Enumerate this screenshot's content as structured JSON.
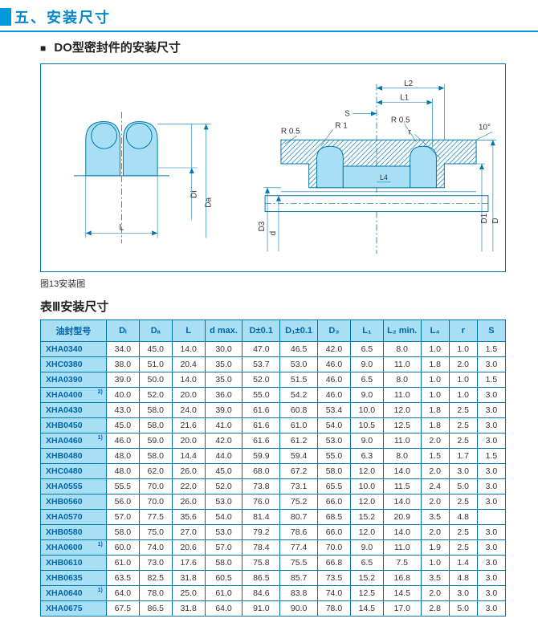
{
  "section_title": "五、安装尺寸",
  "subsection_title": "DO型密封件的安装尺寸",
  "figure_caption": "图13安装图",
  "table_title": "表Ⅲ安装尺寸",
  "columns": [
    "油封型号",
    "Dᵢ",
    "Dₐ",
    "L",
    "d max.",
    "D±0.1",
    "D₁±0.1",
    "D₃",
    "L₁",
    "L₂ min.",
    "L₄",
    "r",
    "S"
  ],
  "rows": [
    {
      "model": "XHA0340",
      "sup": "",
      "d": [
        "34.0",
        "45.0",
        "14.0",
        "30.0",
        "47.0",
        "46.5",
        "42.0",
        "6.5",
        "8.0",
        "1.0",
        "1.0",
        "1.5"
      ]
    },
    {
      "model": "XHC0380",
      "sup": "",
      "d": [
        "38.0",
        "51.0",
        "20.4",
        "35.0",
        "53.7",
        "53.0",
        "46.0",
        "9.0",
        "11.0",
        "1.8",
        "2.0",
        "3.0"
      ]
    },
    {
      "model": "XHA0390",
      "sup": "",
      "d": [
        "39.0",
        "50.0",
        "14.0",
        "35.0",
        "52.0",
        "51.5",
        "46.0",
        "6.5",
        "8.0",
        "1.0",
        "1.0",
        "1.5"
      ]
    },
    {
      "model": "XHA0400",
      "sup": "2)",
      "d": [
        "40.0",
        "52.0",
        "20.0",
        "36.0",
        "55.0",
        "54.2",
        "46.0",
        "9.0",
        "11.0",
        "1.0",
        "1.0",
        "3.0"
      ]
    },
    {
      "model": "XHA0430",
      "sup": "",
      "d": [
        "43.0",
        "58.0",
        "24.0",
        "39.0",
        "61.6",
        "60.8",
        "53.4",
        "10.0",
        "12.0",
        "1.8",
        "2.5",
        "3.0"
      ]
    },
    {
      "model": "XHB0450",
      "sup": "",
      "d": [
        "45.0",
        "58.0",
        "21.6",
        "41.0",
        "61.6",
        "61.0",
        "54.0",
        "10.5",
        "12.5",
        "1.8",
        "2.5",
        "3.0"
      ]
    },
    {
      "model": "XHA0460",
      "sup": "1)",
      "d": [
        "46.0",
        "59.0",
        "20.0",
        "42.0",
        "61.6",
        "61.2",
        "53.0",
        "9.0",
        "11.0",
        "2.0",
        "2.5",
        "3.0"
      ]
    },
    {
      "model": "XHB0480",
      "sup": "",
      "d": [
        "48.0",
        "58.0",
        "14.4",
        "44.0",
        "59.9",
        "59.4",
        "55.0",
        "6.3",
        "8.0",
        "1.5",
        "1.7",
        "1.5"
      ]
    },
    {
      "model": "XHC0480",
      "sup": "",
      "d": [
        "48.0",
        "62.0",
        "26.0",
        "45.0",
        "68.0",
        "67.2",
        "58.0",
        "12.0",
        "14.0",
        "2.0",
        "3.0",
        "3.0"
      ]
    },
    {
      "model": "XHA0555",
      "sup": "",
      "d": [
        "55.5",
        "70.0",
        "22.0",
        "52.0",
        "73.8",
        "73.1",
        "65.5",
        "10.0",
        "11.5",
        "2.4",
        "5.0",
        "3.0"
      ]
    },
    {
      "model": "XHB0560",
      "sup": "",
      "d": [
        "56.0",
        "70.0",
        "26.0",
        "53.0",
        "76.0",
        "75.2",
        "66.0",
        "12.0",
        "14.0",
        "2.0",
        "2.5",
        "3.0"
      ]
    },
    {
      "model": "XHA0570",
      "sup": "",
      "d": [
        "57.0",
        "77.5",
        "35.6",
        "54.0",
        "81.4",
        "80.7",
        "68.5",
        "15.2",
        "20.9",
        "3.5",
        "4.8",
        ""
      ]
    },
    {
      "model": "XHB0580",
      "sup": "",
      "d": [
        "58.0",
        "75.0",
        "27.0",
        "53.0",
        "79.2",
        "78.6",
        "66.0",
        "12.0",
        "14.0",
        "2.0",
        "2.5",
        "3.0"
      ]
    },
    {
      "model": "XHA0600",
      "sup": "1)",
      "d": [
        "60.0",
        "74.0",
        "20.6",
        "57.0",
        "78.4",
        "77.4",
        "70.0",
        "9.0",
        "11.0",
        "1.9",
        "2.5",
        "3.0"
      ]
    },
    {
      "model": "XHB0610",
      "sup": "",
      "d": [
        "61.0",
        "73.0",
        "17.6",
        "58.0",
        "75.8",
        "75.5",
        "66.8",
        "6.5",
        "7.5",
        "1.0",
        "1.4",
        "3.0"
      ]
    },
    {
      "model": "XHB0635",
      "sup": "",
      "d": [
        "63.5",
        "82.5",
        "31.8",
        "60.5",
        "86.5",
        "85.7",
        "73.5",
        "15.2",
        "16.8",
        "3.5",
        "4.8",
        "3.0"
      ]
    },
    {
      "model": "XHA0640",
      "sup": "1)",
      "d": [
        "64.0",
        "78.0",
        "25.0",
        "61.0",
        "84.6",
        "83.8",
        "74.0",
        "12.5",
        "14.5",
        "2.0",
        "3.0",
        "3.0"
      ]
    },
    {
      "model": "XHA0675",
      "sup": "",
      "d": [
        "67.5",
        "86.5",
        "31.8",
        "64.0",
        "91.0",
        "90.0",
        "78.0",
        "14.5",
        "17.0",
        "2.8",
        "5.0",
        "3.0"
      ]
    }
  ],
  "colors": {
    "accent": "#0099dd",
    "border": "#0077aa",
    "header_bg": "#a8dff5",
    "header_text": "#0066aa",
    "seal_fill": "#a8dff5"
  },
  "diagram_labels": {
    "L": "L",
    "Di": "Di",
    "Da": "Da",
    "L2": "L2",
    "L1": "L1",
    "S": "S",
    "R1": "R 1",
    "R05a": "R 0.5",
    "R05b": "R 0.5",
    "ten": "10°",
    "r": "r",
    "L4": "L4",
    "D3": "D3",
    "d": "d",
    "D1": "D1",
    "D": "D"
  }
}
